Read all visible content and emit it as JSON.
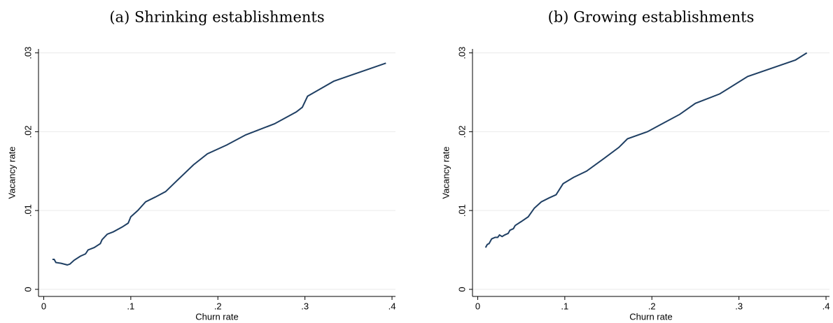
{
  "chart_data": [
    {
      "type": "line",
      "title": "(a) Shrinking establishments",
      "x_label": "Churn rate",
      "y_label": "Vacancy rate",
      "color": "#1f3f63",
      "grid": true,
      "xlim": [
        -0.006,
        0.404
      ],
      "ylim": [
        -0.0009,
        0.0305
      ],
      "xticks": [
        0,
        {
          "value": 0.1,
          "label": ".1"
        },
        {
          "value": 0.2,
          "label": ".2"
        },
        {
          "value": 0.3,
          "label": ".3"
        },
        {
          "value": 0.4,
          "label": ".4"
        }
      ],
      "yticks": [
        0,
        {
          "value": 0.01,
          "label": ".01"
        },
        {
          "value": 0.02,
          "label": ".02"
        },
        {
          "value": 0.03,
          "label": ".03"
        }
      ],
      "x": [
        0.01,
        0.012,
        0.014,
        0.02,
        0.027,
        0.03,
        0.035,
        0.042,
        0.048,
        0.051,
        0.058,
        0.065,
        0.067,
        0.073,
        0.08,
        0.09,
        0.097,
        0.1,
        0.108,
        0.117,
        0.128,
        0.14,
        0.155,
        0.172,
        0.188,
        0.21,
        0.232,
        0.265,
        0.29,
        0.297,
        0.303,
        0.333,
        0.393
      ],
      "values": [
        0.0038,
        0.0038,
        0.0034,
        0.0033,
        0.0031,
        0.0032,
        0.0037,
        0.0042,
        0.0045,
        0.005,
        0.0053,
        0.0058,
        0.0063,
        0.007,
        0.0073,
        0.0079,
        0.0084,
        0.0092,
        0.01,
        0.0111,
        0.0117,
        0.0124,
        0.014,
        0.0158,
        0.0172,
        0.0183,
        0.0196,
        0.021,
        0.0225,
        0.0231,
        0.0245,
        0.0264,
        0.0287
      ]
    },
    {
      "type": "line",
      "title": "(b) Growing establishments",
      "x_label": "Churn rate",
      "y_label": "Vacancy rate",
      "color": "#1f3f63",
      "grid": true,
      "xlim": [
        -0.006,
        0.404
      ],
      "ylim": [
        -0.0009,
        0.0305
      ],
      "xticks": [
        0,
        {
          "value": 0.1,
          "label": ".1"
        },
        {
          "value": 0.2,
          "label": ".2"
        },
        {
          "value": 0.3,
          "label": ".3"
        },
        {
          "value": 0.4,
          "label": ".4"
        }
      ],
      "yticks": [
        0,
        {
          "value": 0.01,
          "label": ".01"
        },
        {
          "value": 0.02,
          "label": ".02"
        },
        {
          "value": 0.03,
          "label": ".03"
        }
      ],
      "x": [
        0.009,
        0.011,
        0.013,
        0.016,
        0.02,
        0.023,
        0.025,
        0.028,
        0.031,
        0.035,
        0.037,
        0.041,
        0.043,
        0.05,
        0.058,
        0.065,
        0.073,
        0.082,
        0.09,
        0.098,
        0.11,
        0.125,
        0.145,
        0.162,
        0.172,
        0.195,
        0.21,
        0.232,
        0.25,
        0.278,
        0.31,
        0.365,
        0.378
      ],
      "values": [
        0.0053,
        0.0057,
        0.0058,
        0.0064,
        0.0066,
        0.0066,
        0.0069,
        0.0067,
        0.0069,
        0.0071,
        0.0075,
        0.0077,
        0.0081,
        0.0086,
        0.0092,
        0.0103,
        0.0111,
        0.0116,
        0.012,
        0.0134,
        0.0142,
        0.015,
        0.0166,
        0.018,
        0.0191,
        0.02,
        0.0209,
        0.0222,
        0.0236,
        0.0248,
        0.027,
        0.0291,
        0.03
      ]
    }
  ]
}
